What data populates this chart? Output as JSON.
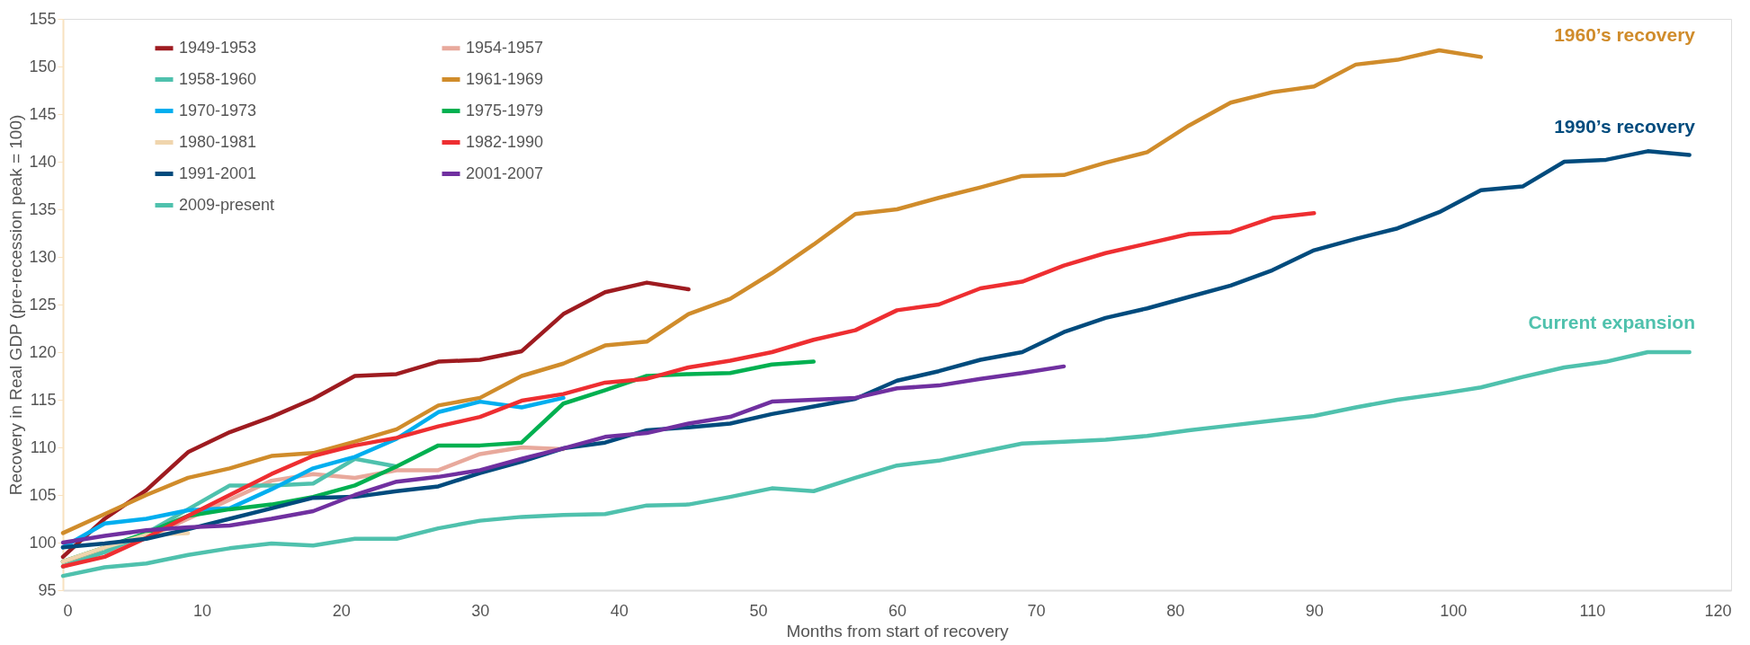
{
  "chart_data": {
    "type": "line",
    "xlabel": "Months from start of recovery",
    "ylabel": "Recovery in Real GDP (pre-recession peak = 100)",
    "xlim": [
      0,
      120
    ],
    "xticks": [
      0,
      10,
      20,
      30,
      40,
      50,
      60,
      70,
      80,
      90,
      100,
      110,
      120
    ],
    "ylim": [
      95,
      155
    ],
    "yticks": [
      95,
      100,
      105,
      110,
      115,
      120,
      125,
      130,
      135,
      140,
      145,
      150,
      155
    ],
    "grid": false,
    "legend": "top left",
    "marker": "none",
    "line_style": "solid",
    "series": [
      {
        "name": "1949-1953",
        "color": "#9e1b20",
        "x": [
          0,
          3,
          6,
          9,
          12,
          15,
          18,
          21,
          24,
          27,
          30,
          33,
          36,
          39,
          42,
          45
        ],
        "values": [
          98.5,
          102.5,
          105.5,
          109.5,
          111.6,
          113.2,
          115.1,
          117.5,
          117.7,
          119,
          119.2,
          120.1,
          124,
          126.3,
          127.3,
          126.6
        ]
      },
      {
        "name": "1954-1957",
        "color": "#e8a99c",
        "x": [
          0,
          3,
          6,
          9,
          12,
          15,
          18,
          21,
          24,
          27,
          30,
          33,
          36
        ],
        "values": [
          98,
          99,
          100.5,
          102.5,
          104.5,
          106.5,
          107.2,
          106.8,
          107.6,
          107.6,
          109.3,
          110,
          109.8
        ]
      },
      {
        "name": "1958-1960",
        "color": "#4fc1ad",
        "x": [
          0,
          3,
          6,
          9,
          12,
          15,
          18,
          21,
          24
        ],
        "values": [
          97.5,
          99,
          101,
          103.5,
          106,
          106,
          106.2,
          108.8,
          108
        ]
      },
      {
        "name": "1961-1969",
        "color": "#d08c2b",
        "x": [
          0,
          3,
          6,
          9,
          12,
          15,
          18,
          21,
          24,
          27,
          30,
          33,
          36,
          39,
          42,
          45,
          48,
          51,
          54,
          57,
          60,
          63,
          66,
          69,
          72,
          75,
          78,
          81,
          84,
          87,
          90,
          93,
          96,
          99,
          102
        ],
        "values": [
          101,
          103,
          105,
          106.8,
          107.8,
          109.1,
          109.4,
          110.6,
          111.9,
          114.4,
          115.2,
          117.5,
          118.8,
          120.7,
          121.1,
          124,
          125.6,
          128.3,
          131.3,
          134.5,
          135,
          136.2,
          137.3,
          138.5,
          138.6,
          139.9,
          141,
          143.8,
          146.2,
          147.3,
          147.9,
          150.2,
          150.7,
          151.7,
          151
        ]
      },
      {
        "name": "1970-1973",
        "color": "#00aeef",
        "x": [
          0,
          3,
          6,
          9,
          12,
          15,
          18,
          21,
          24,
          27,
          30,
          33,
          36
        ],
        "values": [
          99.5,
          102,
          102.5,
          103.4,
          103.6,
          105.6,
          107.8,
          109,
          110.9,
          113.7,
          114.8,
          114.2,
          115.2
        ]
      },
      {
        "name": "1975-1979",
        "color": "#00b050",
        "x": [
          0,
          3,
          6,
          9,
          12,
          15,
          18,
          21,
          24,
          27,
          30,
          33,
          36,
          39,
          42,
          45,
          48,
          51,
          54
        ],
        "values": [
          98,
          99.5,
          101,
          102.8,
          103.5,
          104,
          104.8,
          106,
          108,
          110.2,
          110.2,
          110.5,
          114.6,
          116,
          117.5,
          117.7,
          117.8,
          118.7,
          119
        ]
      },
      {
        "name": "1980-1981",
        "color": "#f0d5ad",
        "x": [
          0,
          3,
          6,
          9
        ],
        "values": [
          98,
          99.5,
          100.8,
          101
        ]
      },
      {
        "name": "1982-1990",
        "color": "#ee2e31",
        "x": [
          0,
          3,
          6,
          9,
          12,
          15,
          18,
          21,
          24,
          27,
          30,
          33,
          36,
          39,
          42,
          45,
          48,
          51,
          54,
          57,
          60,
          63,
          66,
          69,
          72,
          75,
          78,
          81,
          84,
          87,
          90
        ],
        "values": [
          97.5,
          98.5,
          100.5,
          102.8,
          105,
          107.2,
          109.1,
          110.2,
          111,
          112.2,
          113.2,
          114.9,
          115.6,
          116.8,
          117.2,
          118.4,
          119.1,
          120,
          121.3,
          122.3,
          124.4,
          125,
          126.7,
          127.4,
          129.1,
          130.4,
          131.4,
          132.4,
          132.6,
          134.1,
          134.6
        ]
      },
      {
        "name": "1991-2001",
        "color": "#004b7d",
        "x": [
          0,
          3,
          6,
          9,
          12,
          15,
          18,
          21,
          24,
          27,
          30,
          33,
          36,
          39,
          42,
          45,
          48,
          51,
          54,
          57,
          60,
          63,
          66,
          69,
          72,
          75,
          78,
          81,
          84,
          87,
          90,
          93,
          96,
          99,
          102,
          105,
          108,
          111,
          114,
          117
        ],
        "values": [
          99.5,
          99.9,
          100.4,
          101.4,
          102.5,
          103.6,
          104.7,
          104.8,
          105.4,
          105.9,
          107.3,
          108.5,
          109.9,
          110.5,
          111.8,
          112.1,
          112.5,
          113.5,
          114.3,
          115.1,
          117,
          118,
          119.2,
          120,
          122.1,
          123.6,
          124.6,
          125.8,
          127,
          128.6,
          130.7,
          131.9,
          133,
          134.7,
          137,
          137.4,
          140,
          140.2,
          141.1,
          140.7
        ]
      },
      {
        "name": "2001-2007",
        "color": "#7030a0",
        "x": [
          0,
          3,
          6,
          9,
          12,
          15,
          18,
          21,
          24,
          27,
          30,
          33,
          36,
          39,
          42,
          45,
          48,
          51,
          54,
          57,
          60,
          63,
          66,
          69,
          72
        ],
        "values": [
          100,
          100.7,
          101.3,
          101.6,
          101.8,
          102.5,
          103.3,
          105,
          106.4,
          106.9,
          107.6,
          108.8,
          109.9,
          111.1,
          111.5,
          112.5,
          113.2,
          114.8,
          115,
          115.2,
          116.2,
          116.5,
          117.2,
          117.8,
          118.5
        ]
      },
      {
        "name": "2009-present",
        "color": "#4fc1ad",
        "x": [
          0,
          3,
          6,
          9,
          12,
          15,
          18,
          21,
          24,
          27,
          30,
          33,
          36,
          39,
          42,
          45,
          48,
          51,
          54,
          57,
          60,
          63,
          66,
          69,
          72,
          75,
          78,
          81,
          84,
          87,
          90,
          93,
          96,
          99,
          102,
          105,
          108,
          111,
          114,
          117
        ],
        "values": [
          96.5,
          97.4,
          97.8,
          98.7,
          99.4,
          99.9,
          99.7,
          100.4,
          100.4,
          101.5,
          102.3,
          102.7,
          102.9,
          103,
          103.9,
          104,
          104.8,
          105.7,
          105.4,
          106.8,
          108.1,
          108.6,
          109.5,
          110.4,
          110.6,
          110.8,
          111.2,
          111.8,
          112.3,
          112.8,
          113.3,
          114.2,
          115,
          115.6,
          116.3,
          117.4,
          118.4,
          119,
          120,
          120
        ]
      }
    ],
    "annotations": [
      "1960’s recovery",
      "1990’s recovery",
      "Current expansion"
    ]
  }
}
